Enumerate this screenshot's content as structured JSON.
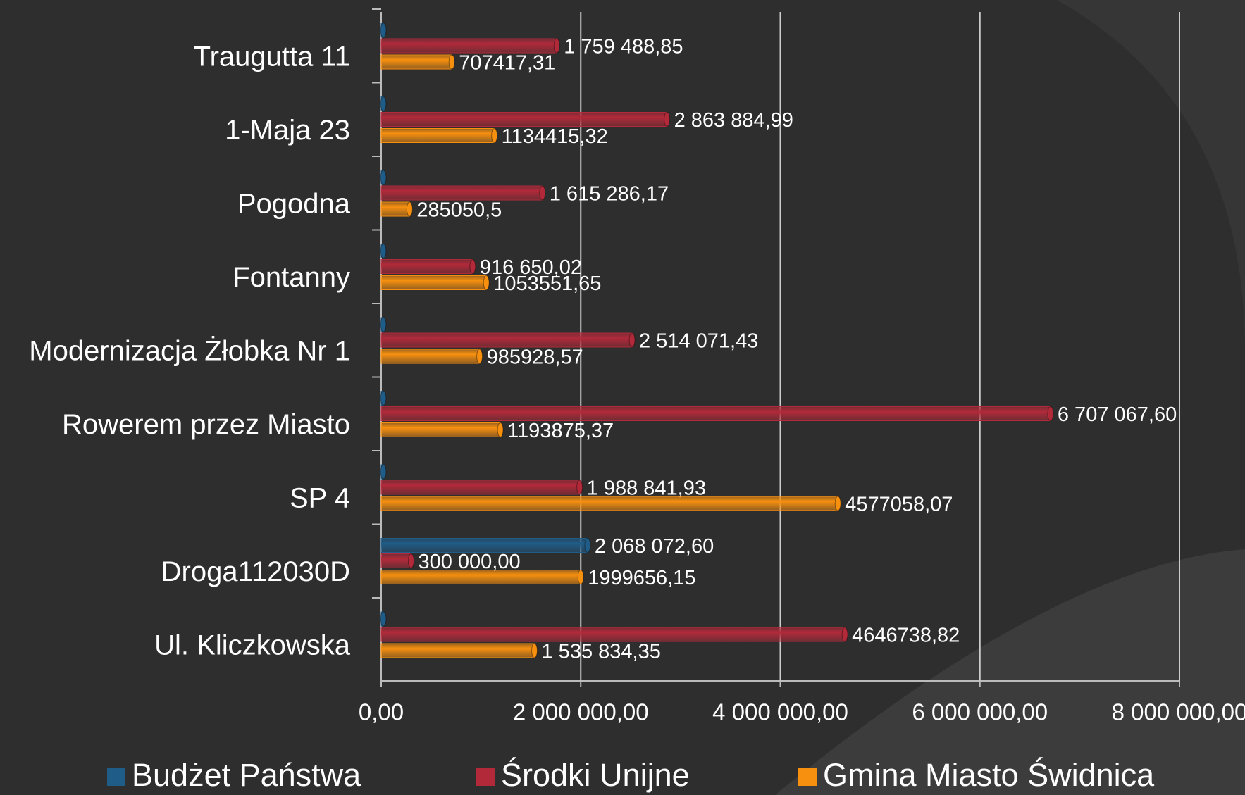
{
  "chart_data": {
    "type": "bar",
    "orientation": "horizontal",
    "categories": [
      "Traugutta 11",
      "1-Maja 23",
      "Pogodna",
      "Fontanny",
      "Modernizacja Żłobka Nr 1",
      "Rowerem przez Miasto",
      "SP 4",
      "Droga112030D",
      "Ul. Kliczkowska"
    ],
    "series": [
      {
        "name": "Budżet Państwa",
        "color": "#1f5c87",
        "values": [
          0,
          0,
          0,
          0,
          0,
          0,
          0,
          2068072.6,
          0
        ],
        "value_labels": [
          null,
          null,
          null,
          null,
          null,
          null,
          null,
          "2 068 072,60",
          null
        ]
      },
      {
        "name": "Środki Unijne",
        "color": "#b22a3a",
        "values": [
          1759488.85,
          2863884.99,
          1615286.17,
          916650.02,
          2514071.43,
          6707067.6,
          1988841.93,
          300000.0,
          4646738.82
        ],
        "value_labels": [
          "1 759 488,85",
          "2 863 884,99",
          "1 615 286,17",
          "916 650,02",
          "2 514 071,43",
          "6 707 067,60",
          "1 988 841,93",
          "300 000,00",
          "4646738,82"
        ]
      },
      {
        "name": "Gmina Miasto Świdnica",
        "color": "#f7900f",
        "values": [
          707417.31,
          1134415.32,
          285050.5,
          1053551.65,
          985928.57,
          1193875.37,
          4577058.07,
          1999656.15,
          1535834.35
        ],
        "value_labels": [
          "707417,31",
          "1134415,32",
          "285050,5",
          "1053551,65",
          "985928,57",
          "1193875,37",
          "4577058,07",
          "1999656,15",
          "1 535 834,35"
        ]
      }
    ],
    "xlim": [
      0,
      8000000
    ],
    "xticks": [
      {
        "value": 0,
        "label": "0,00"
      },
      {
        "value": 2000000,
        "label": "2 000 000,00"
      },
      {
        "value": 4000000,
        "label": "4 000 000,00"
      },
      {
        "value": 6000000,
        "label": "6 000 000,00"
      },
      {
        "value": 8000000,
        "label": "8 000 000,00"
      }
    ],
    "grid": true,
    "legend": "bottom"
  }
}
